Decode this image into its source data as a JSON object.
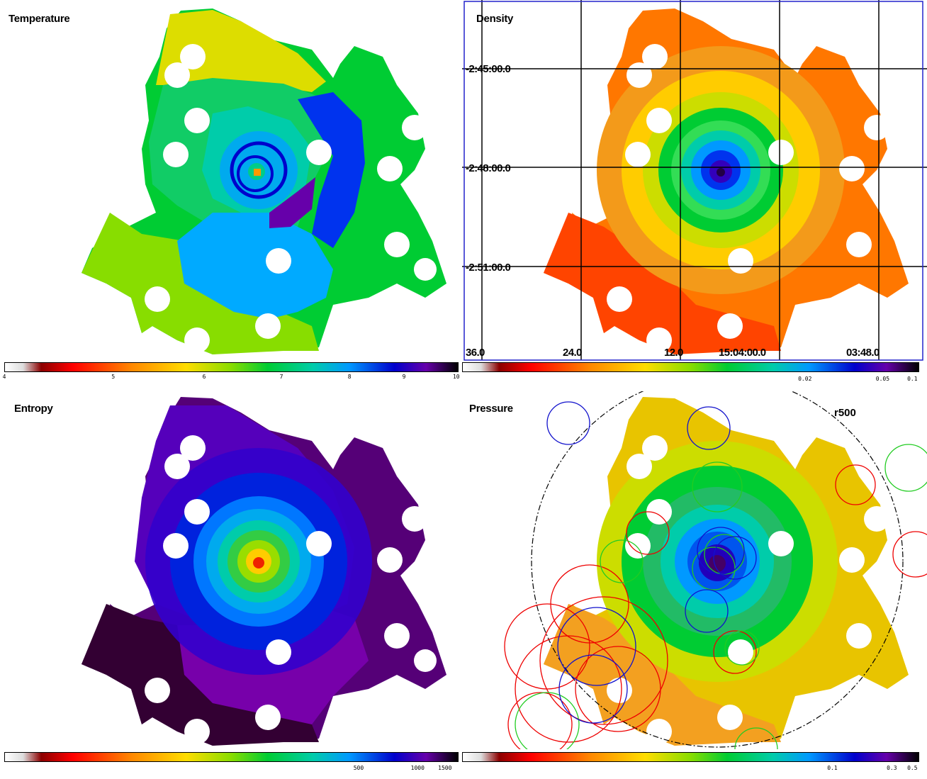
{
  "panels": {
    "temperature": {
      "title": "Temperature",
      "colorbar_ticks": [
        "4",
        "5",
        "6",
        "7",
        "8",
        "9",
        "10"
      ]
    },
    "density": {
      "title": "Density",
      "dec_labels": [
        "-2:45:00.0",
        "-2:48:00.0",
        "-2:51:00.0"
      ],
      "ra_labels": [
        "36.0",
        "24.0",
        "12.0",
        "15:04:00.0",
        "03:48.0"
      ],
      "colorbar_ticks": [
        "0.02",
        "0.05",
        "0.1"
      ]
    },
    "entropy": {
      "title": "Entropy",
      "colorbar_ticks": [
        "500",
        "1000",
        "1500"
      ]
    },
    "pressure": {
      "title": "Pressure",
      "region_label": "r500",
      "colorbar_ticks": [
        "0.1",
        "0.3",
        "0.5"
      ]
    }
  },
  "colors": {
    "grid_line": "#000000",
    "frame_blue": "#2222cc",
    "region_red": "#ee0000",
    "region_green": "#22cc22",
    "region_blue": "#1111cc",
    "colormap": [
      "#ffffff",
      "#dddddd",
      "#8b0000",
      "#ff0000",
      "#ff8800",
      "#ffdd00",
      "#88dd00",
      "#00cc33",
      "#00ccaa",
      "#0099ff",
      "#0000cc",
      "#6600aa",
      "#000000"
    ]
  }
}
